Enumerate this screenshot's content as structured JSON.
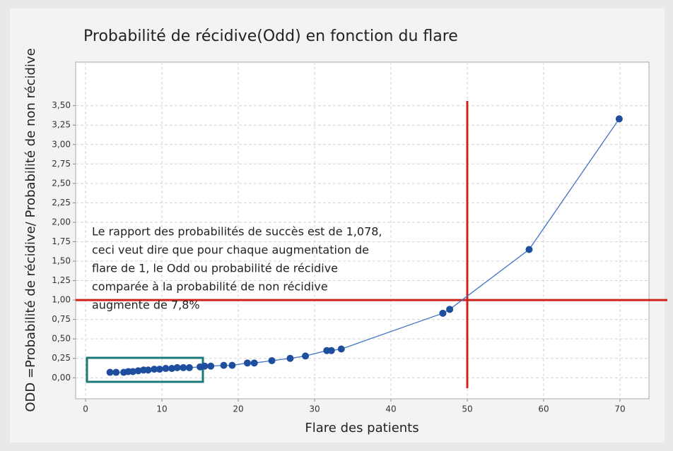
{
  "chart_data": {
    "type": "line",
    "title": "Probabilité de récidive(Odd) en fonction du flare",
    "xlabel": "Flare des patients",
    "ylabel": "ODD =Probabilité de récidive/ Probabilité de non récidive",
    "x": [
      3.2,
      4.0,
      5.0,
      5.6,
      6.2,
      6.9,
      7.6,
      8.2,
      9.0,
      9.7,
      10.5,
      11.3,
      12.0,
      12.8,
      13.6,
      15.0,
      15.6,
      16.4,
      18.1,
      19.2,
      21.2,
      22.1,
      24.4,
      26.8,
      28.8,
      31.6,
      32.2,
      33.5,
      46.8,
      47.7,
      58.1,
      69.9
    ],
    "series": [
      {
        "color": "#1f4e9e",
        "values": [
          0.07,
          0.07,
          0.07,
          0.08,
          0.08,
          0.09,
          0.1,
          0.1,
          0.11,
          0.11,
          0.12,
          0.12,
          0.13,
          0.13,
          0.13,
          0.14,
          0.15,
          0.15,
          0.16,
          0.16,
          0.19,
          0.19,
          0.22,
          0.25,
          0.28,
          0.35,
          0.35,
          0.37,
          0.83,
          0.88,
          1.65,
          3.33
        ]
      }
    ],
    "xlim": [
      -1.3,
      73.8
    ],
    "ylim": [
      -0.27,
      4.06
    ],
    "xticks": [
      0,
      10,
      20,
      30,
      40,
      50,
      60,
      70
    ],
    "yticks": [
      {
        "value": 0,
        "label": "0,00"
      },
      {
        "value": 0.25,
        "label": "0,25"
      },
      {
        "value": 0.5,
        "label": "0,50"
      },
      {
        "value": 0.75,
        "label": "0,75"
      },
      {
        "value": 1,
        "label": "1,00"
      },
      {
        "value": 1.25,
        "label": "1,25"
      },
      {
        "value": 1.5,
        "label": "1,50"
      },
      {
        "value": 1.75,
        "label": "1,75"
      },
      {
        "value": 2,
        "label": "2,00"
      },
      {
        "value": 2.25,
        "label": "2,25"
      },
      {
        "value": 2.5,
        "label": "2,50"
      },
      {
        "value": 2.75,
        "label": "2,75"
      },
      {
        "value": 3,
        "label": "3,00"
      },
      {
        "value": 3.25,
        "label": "3,25"
      },
      {
        "value": 3.5,
        "label": "3,50"
      }
    ],
    "grid": true,
    "vlines": [
      50
    ],
    "hlines": [
      1
    ],
    "reference_color": "#d0201a",
    "annotation": [
      "Le rapport des probabilités de succès est de 1,078,",
      "ceci veut dire que pour chaque augmentation de",
      "flare de 1, le Odd ou probabilité de récidive",
      "comparée à la probabilité de non récidive",
      "augmente de 7,8%"
    ]
  }
}
